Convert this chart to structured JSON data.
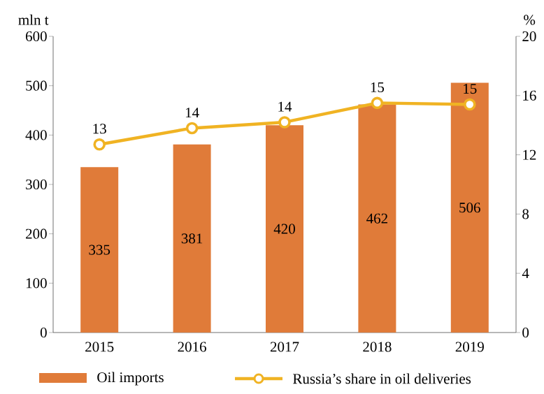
{
  "chart_data": {
    "type": "bar",
    "categories": [
      "2015",
      "2016",
      "2017",
      "2018",
      "2019"
    ],
    "ylabel": "mln t",
    "y2label": "%",
    "ylim": [
      0,
      600
    ],
    "yticks": [
      0,
      100,
      200,
      300,
      400,
      500,
      600
    ],
    "y2lim": [
      0,
      20
    ],
    "y2ticks": [
      0,
      4,
      8,
      12,
      16,
      20
    ],
    "series": [
      {
        "name": "Oil imports",
        "color": "#e07b39",
        "values": [
          335,
          381,
          420,
          462,
          506
        ],
        "value_labels": [
          "335",
          "381",
          "420",
          "462",
          "506"
        ]
      },
      {
        "name": "Russia’s share in oil deliveries",
        "type": "line",
        "axis": "y2",
        "color": "#f0b323",
        "marker": "circle",
        "values": [
          12.7,
          13.8,
          14.2,
          15.5,
          15.4
        ],
        "value_labels": [
          "13",
          "14",
          "14",
          "15",
          "15"
        ]
      }
    ],
    "legend": "bottom",
    "grid": false
  }
}
